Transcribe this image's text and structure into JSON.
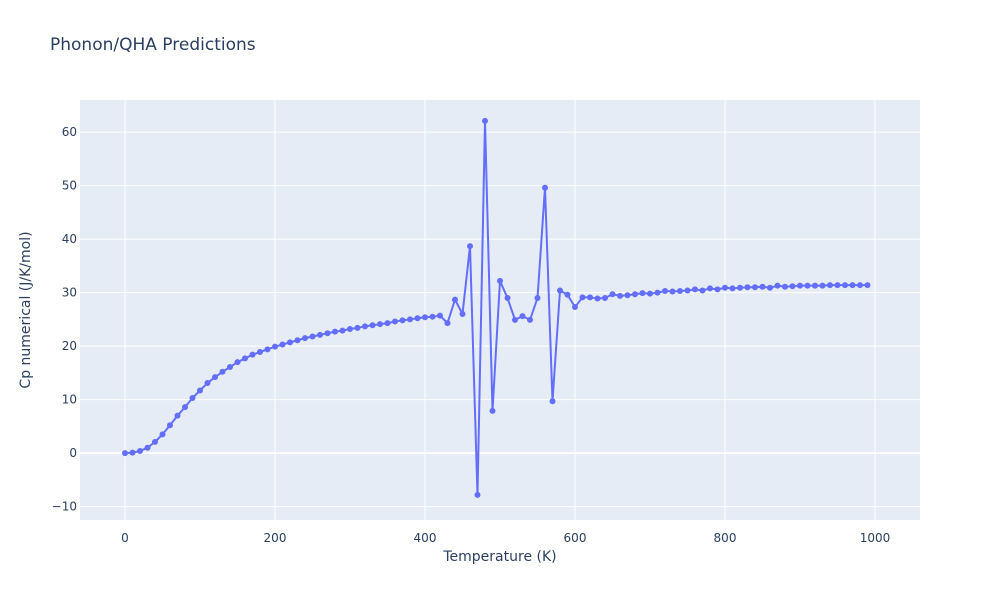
{
  "chart_data": {
    "type": "line",
    "title": "Phonon/QHA Predictions",
    "xlabel": "Temperature (K)",
    "ylabel": "Cp numerical (J/K/mol)",
    "xlim": [
      -60,
      1060
    ],
    "ylim": [
      -12.5,
      66
    ],
    "x_ticks": [
      0,
      200,
      400,
      600,
      800,
      1000
    ],
    "y_ticks": [
      -10,
      0,
      10,
      20,
      30,
      40,
      50,
      60
    ],
    "grid": true,
    "legend": "none",
    "colors": {
      "plot_bg": "#e5ecf6",
      "grid": "#ffffff",
      "series": "#636efa",
      "text": "#2a3f5f"
    },
    "series": [
      {
        "mode": "lines+markers",
        "x": [
          0,
          10,
          20,
          30,
          40,
          50,
          60,
          70,
          80,
          90,
          100,
          110,
          120,
          130,
          140,
          150,
          160,
          170,
          180,
          190,
          200,
          210,
          220,
          230,
          240,
          250,
          260,
          270,
          280,
          290,
          300,
          310,
          320,
          330,
          340,
          350,
          360,
          370,
          380,
          390,
          400,
          410,
          420,
          430,
          440,
          450,
          460,
          470,
          480,
          490,
          500,
          510,
          520,
          530,
          540,
          550,
          560,
          570,
          580,
          590,
          600,
          610,
          620,
          630,
          640,
          650,
          660,
          670,
          680,
          690,
          700,
          710,
          720,
          730,
          740,
          750,
          760,
          770,
          780,
          790,
          800,
          810,
          820,
          830,
          840,
          850,
          860,
          870,
          880,
          890,
          900,
          910,
          920,
          930,
          940,
          950,
          960,
          970,
          980,
          990
        ],
        "y": [
          0,
          0.1,
          0.4,
          1.0,
          2.1,
          3.5,
          5.2,
          7.0,
          8.6,
          10.3,
          11.7,
          13.1,
          14.2,
          15.2,
          16.1,
          17.0,
          17.7,
          18.4,
          18.9,
          19.4,
          19.9,
          20.3,
          20.7,
          21.1,
          21.5,
          21.8,
          22.1,
          22.4,
          22.7,
          22.9,
          23.2,
          23.4,
          23.7,
          23.9,
          24.1,
          24.3,
          24.6,
          24.8,
          25.0,
          25.2,
          25.4,
          25.5,
          25.7,
          24.3,
          28.7,
          26.0,
          38.7,
          -7.8,
          62.1,
          7.9,
          32.2,
          29.0,
          24.9,
          25.6,
          24.9,
          29.0,
          49.6,
          9.7,
          30.4,
          29.6,
          27.3,
          29.1,
          29.1,
          28.9,
          29.0,
          29.7,
          29.4,
          29.5,
          29.7,
          29.9,
          29.8,
          30.0,
          30.3,
          30.2,
          30.3,
          30.4,
          30.6,
          30.4,
          30.8,
          30.6,
          30.9,
          30.8,
          30.9,
          31.0,
          31.0,
          31.1,
          30.9,
          31.3,
          31.1,
          31.2,
          31.3,
          31.3,
          31.3,
          31.3,
          31.4,
          31.4,
          31.4,
          31.4,
          31.4,
          31.4
        ]
      }
    ]
  }
}
